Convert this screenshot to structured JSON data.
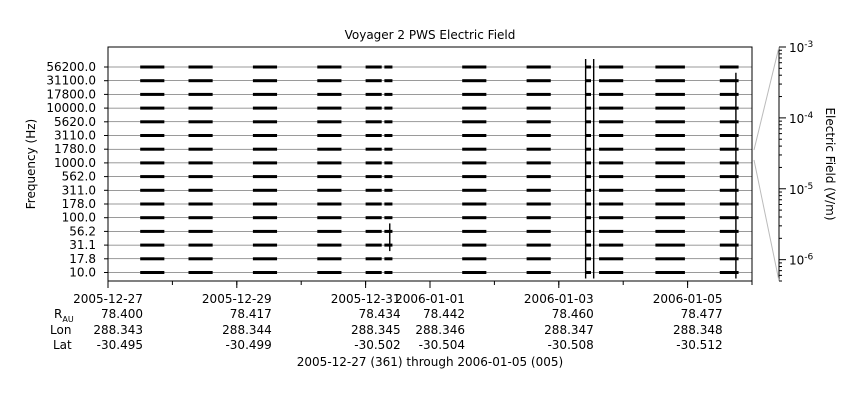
{
  "chart_data": {
    "type": "heatmap",
    "title": "Voyager 2 PWS Electric Field",
    "ylabel": "Frequency (Hz)",
    "colorbar_label": "Electric Field (V/m)",
    "frequency_labels": [
      "56200.0",
      "31100.0",
      "17800.0",
      "10000.0",
      "5620.0",
      "3110.0",
      "1780.0",
      "1000.0",
      "562.0",
      "311.0",
      "178.0",
      "100.0",
      "56.2",
      "31.1",
      "17.8",
      "10.0"
    ],
    "colorbar_ticks": [
      {
        "base": "10",
        "exp": "-3",
        "value": 0.001
      },
      {
        "base": "10",
        "exp": "-4",
        "value": 0.0001
      },
      {
        "base": "10",
        "exp": "-5",
        "value": 1e-05
      },
      {
        "base": "10",
        "exp": "-6",
        "value": 1e-06
      }
    ],
    "colorbar_range": [
      5e-07,
      0.001
    ],
    "scale": "log",
    "x_start": "2005-12-27",
    "x_end": "2006-01-06",
    "date_ticks": [
      "2005-12-27",
      "2005-12-29",
      "2005-12-31",
      "2006-01-01",
      "2006-01-03",
      "2006-01-05"
    ],
    "ephemeris": {
      "labels": {
        "rau_main": "R",
        "rau_sub": "AU",
        "lon": "Lon",
        "lat": "Lat"
      },
      "rau": [
        "78.400",
        "78.417",
        "78.434",
        "78.442",
        "78.460",
        "78.477"
      ],
      "lon": [
        "288.343",
        "288.344",
        "288.345",
        "288.346",
        "288.347",
        "288.348"
      ],
      "lat": [
        "-30.495",
        "-30.499",
        "-30.502",
        "-30.504",
        "-30.508",
        "-30.512"
      ]
    },
    "footer": "2005-12-27 (361) through 2006-01-05 (005)",
    "data_segments": [
      [
        "2005-12-27T12:00",
        "2005-12-27T21:00"
      ],
      [
        "2005-12-28T06:00",
        "2005-12-28T15:00"
      ],
      [
        "2005-12-29T06:00",
        "2005-12-29T15:00"
      ],
      [
        "2005-12-30T06:00",
        "2005-12-30T15:00"
      ],
      [
        "2005-12-31T00:00",
        "2005-12-31T06:00"
      ],
      [
        "2005-12-31T07:00",
        "2005-12-31T10:00"
      ],
      [
        "2006-01-01T12:00",
        "2006-01-01T21:00"
      ],
      [
        "2006-01-02T12:00",
        "2006-01-02T21:00"
      ],
      [
        "2006-01-03T10:00",
        "2006-01-03T12:00"
      ],
      [
        "2006-01-03T15:00",
        "2006-01-04T00:00"
      ],
      [
        "2006-01-04T12:00",
        "2006-01-04T23:00"
      ],
      [
        "2006-01-05T12:00",
        "2006-01-05T19:00"
      ]
    ],
    "spikes": [
      {
        "time": "2006-01-03T10:00",
        "bottom": "10.0",
        "top": "56200.0"
      },
      {
        "time": "2006-01-03T13:00",
        "bottom": "10.0",
        "top": "56200.0"
      },
      {
        "time": "2006-01-05T18:00",
        "bottom": "10.0",
        "top": "31100.0"
      },
      {
        "time": "2005-12-31T09:00",
        "bottom": "31.1",
        "top": "56.2"
      }
    ],
    "colors": {
      "signal": "#000000",
      "axis": "#000000",
      "colorbar_link": "#bbbbbb"
    }
  }
}
